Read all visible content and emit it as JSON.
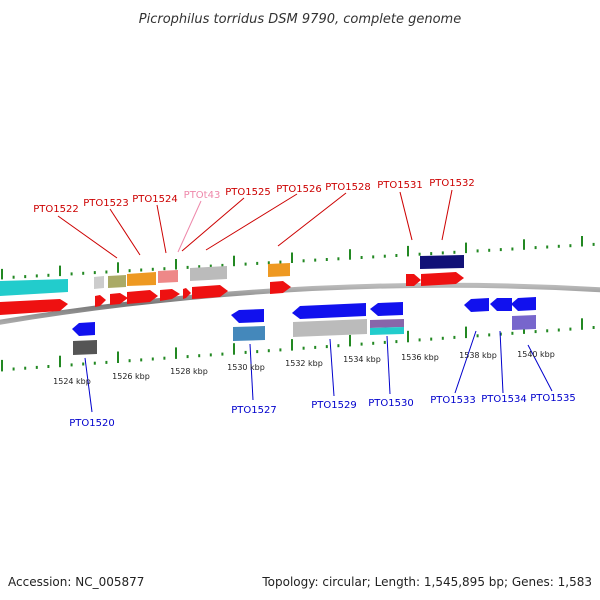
{
  "title": "Picrophilus torridus DSM 9790, complete genome",
  "footer": {
    "accession": "Accession: NC_005877",
    "summary": "Topology: circular; Length: 1,545,895 bp; Genes: 1,583"
  },
  "scale_labels": [
    "1524 kbp",
    "1526 kbp",
    "1528 kbp",
    "1530 kbp",
    "1532 kbp",
    "1534 kbp",
    "1536 kbp",
    "1538 kbp",
    "1540 kbp"
  ],
  "top_genes": [
    "PTO1522",
    "PTO1523",
    "PTO1524",
    "PTOt43",
    "PTO1525",
    "PTO1526",
    "PTO1528",
    "PTO1531",
    "PTO1532"
  ],
  "bottom_genes": [
    "PTO1520",
    "PTO1527",
    "PTO1529",
    "PTO1530",
    "PTO1533",
    "PTO1534",
    "PTO1535"
  ],
  "colors": {
    "forward_label": "#cc0000",
    "trna_label": "#ee88aa",
    "reverse_label": "#0000cc",
    "scale_tick": "#228822",
    "backbone": "#888888"
  }
}
